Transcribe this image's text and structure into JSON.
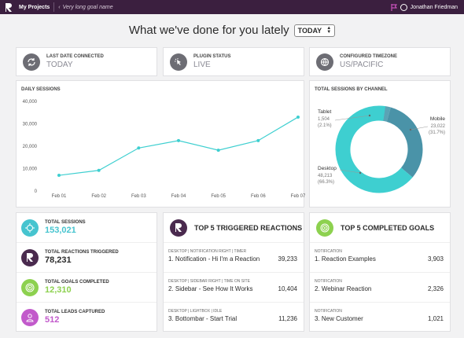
{
  "topbar": {
    "project_label": "My Projects",
    "goal_label": "Very long goal name",
    "user_name": "Jonathan Friedman"
  },
  "header": {
    "headline": "What we've done for you lately",
    "period": "TODAY"
  },
  "stats": [
    {
      "label": "LAST DATE CONNECTED",
      "value": "TODAY",
      "icon": "refresh-icon"
    },
    {
      "label": "PLUGIN STATUS",
      "value": "LIVE",
      "icon": "cursor-click-icon"
    },
    {
      "label": "CONFIGURED TIMEZONE",
      "value": "US/PACIFIC",
      "icon": "globe-icon"
    }
  ],
  "daily": {
    "title": "DAILY SESSIONS"
  },
  "channel": {
    "title": "TOTAL SESSIONS BY CHANNEL"
  },
  "chart_data": [
    {
      "type": "line",
      "title": "DAILY SESSIONS",
      "x": [
        "Feb 01",
        "Feb 02",
        "Feb 03",
        "Feb 04",
        "Feb 05",
        "Feb 06",
        "Feb 07"
      ],
      "y_ticks": [
        "0",
        "10,000",
        "20,000",
        "30,000",
        "40,000"
      ],
      "ylim": [
        0,
        40000
      ],
      "values": [
        7000,
        9200,
        19200,
        22500,
        18200,
        22500,
        33000
      ],
      "color": "#3ecfd0",
      "grid": false
    },
    {
      "type": "pie",
      "title": "TOTAL SESSIONS BY CHANNEL",
      "slices": [
        {
          "name": "Tablet",
          "value": "1,504",
          "pct": "(2.1%)",
          "share": 0.021,
          "color": "#5ba3b5"
        },
        {
          "name": "Mobile",
          "value": "23,022",
          "pct": "(31.7%)",
          "share": 0.317,
          "color": "#4a93a8"
        },
        {
          "name": "Desktop",
          "value": "48,213",
          "pct": "(66.3%)",
          "share": 0.663,
          "color": "#3ecfd0"
        }
      ]
    }
  ],
  "metrics": [
    {
      "label": "TOTAL SESSIONS",
      "value": "153,021",
      "color": "#46c4cf",
      "icon": "target-icon"
    },
    {
      "label": "TOTAL REACTIONS TRIGGERED",
      "value": "78,231",
      "color": "#4a2a4e",
      "icon": "reaction-logo-icon"
    },
    {
      "label": "TOTAL GOALS COMPLETED",
      "value": "12,310",
      "color": "#8dd14f",
      "icon": "goal-target-icon"
    },
    {
      "label": "TOTAL LEADS CAPTURED",
      "value": "512",
      "color": "#c25acb",
      "icon": "person-icon"
    }
  ],
  "reactions": {
    "title": "TOP 5 TRIGGERED REACTIONS",
    "rows": [
      {
        "meta": "DESKTOP | NOTIFICATION RIGHT | TIMER",
        "name": "1. Notification - Hi I'm a Reaction",
        "value": "39,233"
      },
      {
        "meta": "DESKTOP | SIDEBAR RIGHT | TIME ON SITE",
        "name": "2. Sidebar - See How It Works",
        "value": "10,404"
      },
      {
        "meta": "DESKTOP | LIGHTBOX | IDLE",
        "name": "3. Bottombar - Start Trial",
        "value": "11,236"
      }
    ]
  },
  "goals": {
    "title": "TOP 5 COMPLETED GOALS",
    "rows": [
      {
        "meta": "NOTIFICATION",
        "name": "1.  Reaction Examples",
        "value": "3,903"
      },
      {
        "meta": "NOTIFICATION",
        "name": "2.  Webinar Reaction",
        "value": "2,326"
      },
      {
        "meta": "NOTIFICATION",
        "name": "3.  New Customer",
        "value": "1,021"
      }
    ]
  }
}
